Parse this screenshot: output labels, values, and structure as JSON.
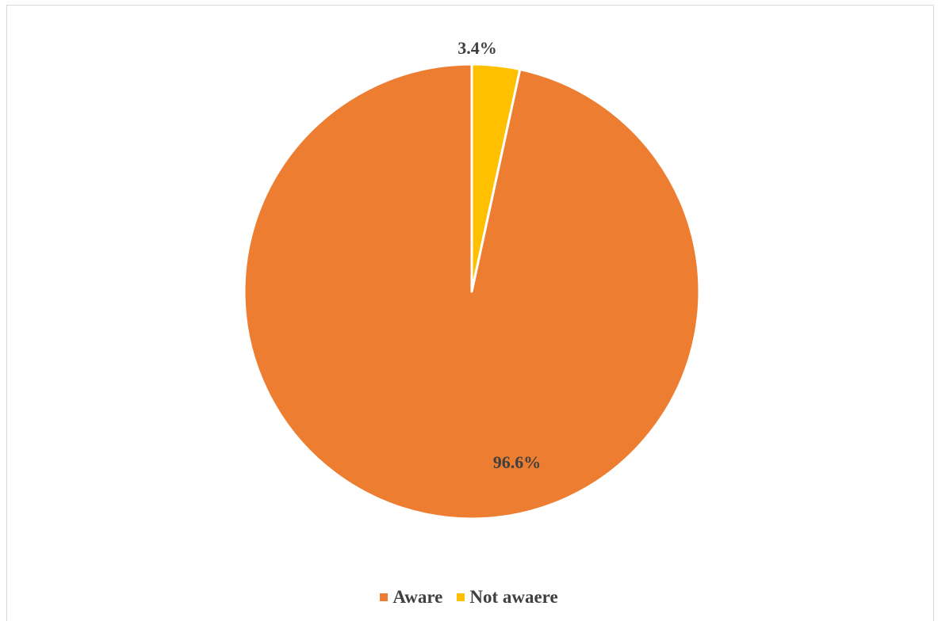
{
  "chart_data": {
    "type": "pie",
    "title": "",
    "start_angle_deg": 0,
    "direction": "clockwise",
    "slices": [
      {
        "label": "Not awaere",
        "value": 3.4,
        "display": "3.4%",
        "color": "#FFC000"
      },
      {
        "label": "Aware",
        "value": 96.6,
        "display": "96.6%",
        "color": "#ED7D31"
      }
    ],
    "legend": {
      "position": "bottom",
      "order": [
        "Aware",
        "Not awaere"
      ]
    },
    "slice_border_color": "#ffffff"
  }
}
